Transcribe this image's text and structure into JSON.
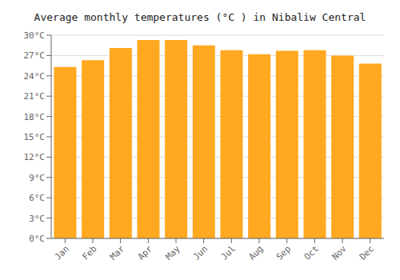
{
  "chart_data": {
    "type": "bar",
    "title": "Average monthly temperatures (°C ) in Nibaliw Central",
    "categories": [
      "Jan",
      "Feb",
      "Mar",
      "Apr",
      "May",
      "Jun",
      "Jul",
      "Aug",
      "Sep",
      "Oct",
      "Nov",
      "Dec"
    ],
    "values": [
      25.3,
      26.3,
      28.1,
      29.3,
      29.3,
      28.5,
      27.8,
      27.2,
      27.7,
      27.8,
      27.0,
      25.8
    ],
    "color": "#FFA820",
    "ylim": [
      0,
      30
    ],
    "yticks": [
      {
        "value": 0,
        "label": "0°C"
      },
      {
        "value": 3,
        "label": "3°C"
      },
      {
        "value": 6,
        "label": "6°C"
      },
      {
        "value": 9,
        "label": "9°C"
      },
      {
        "value": 12,
        "label": "12°C"
      },
      {
        "value": 15,
        "label": "15°C"
      },
      {
        "value": 18,
        "label": "18°C"
      },
      {
        "value": 21,
        "label": "21°C"
      },
      {
        "value": 24,
        "label": "24°C"
      },
      {
        "value": 27,
        "label": "27°C"
      },
      {
        "value": 30,
        "label": "30°C"
      }
    ],
    "grid": true
  }
}
